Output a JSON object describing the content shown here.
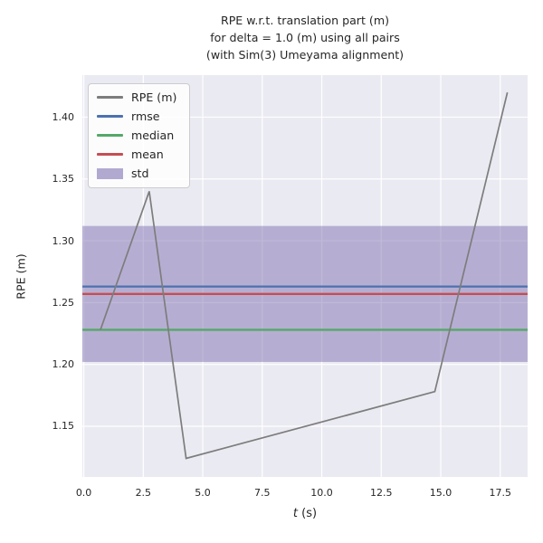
{
  "figure": {
    "title": "RPE w.r.t. translation part (m)\nfor delta = 1.0 (m) using all pairs\n(with Sim(3) Umeyama alignment)",
    "ylabel": "RPE (m)",
    "xlabel_italic": "t",
    "xlabel_rest": " (s)",
    "colors": {
      "axes_bg": "#eaeaf2",
      "grid": "#ffffff",
      "text": "#262626",
      "rpe_line": "#7d7d7d",
      "rmse": "#4c72b0",
      "median": "#55a868",
      "mean": "#c44e52",
      "std_band": "#8172b2"
    }
  },
  "chart_data": {
    "type": "line",
    "title": "RPE w.r.t. translation part (m) for delta = 1.0 (m) using all pairs (with Sim(3) Umeyama alignment)",
    "xlabel": "t (s)",
    "ylabel": "RPE (m)",
    "xlim": [
      -0.06,
      18.65
    ],
    "ylim": [
      1.109,
      1.434
    ],
    "x_ticks": [
      "0.0",
      "2.5",
      "5.0",
      "7.5",
      "10.0",
      "12.5",
      "15.0",
      "17.5"
    ],
    "y_ticks": [
      "1.15",
      "1.20",
      "1.25",
      "1.30",
      "1.35",
      "1.40"
    ],
    "grid": true,
    "legend_position": "upper left",
    "series": [
      {
        "name": "RPE (m)",
        "type": "line",
        "color": "#7d7d7d",
        "x": [
          0.7,
          2.75,
          4.3,
          14.75,
          17.8
        ],
        "y": [
          1.228,
          1.34,
          1.124,
          1.178,
          1.42
        ]
      },
      {
        "name": "rmse",
        "type": "hline",
        "color": "#4c72b0",
        "value": 1.263
      },
      {
        "name": "median",
        "type": "hline",
        "color": "#55a868",
        "value": 1.228
      },
      {
        "name": "mean",
        "type": "hline",
        "color": "#c44e52",
        "value": 1.257
      },
      {
        "name": "std",
        "type": "hband",
        "color": "#8172b2",
        "alpha": 0.5,
        "range": [
          1.202,
          1.312
        ]
      }
    ]
  }
}
